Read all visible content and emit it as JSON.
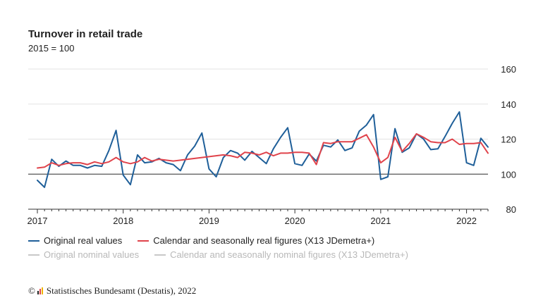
{
  "header": {
    "title": "Turnover in retail trade",
    "subtitle": "2015 = 100"
  },
  "legend": {
    "row1": [
      {
        "label": "Original real values",
        "color": "#1f5f99"
      },
      {
        "label": "Calendar and seasonally real figures (X13 JDemetra+)",
        "color": "#e0434b"
      }
    ],
    "row2": [
      {
        "label": "Original nominal values",
        "color": "#c8c8c8"
      },
      {
        "label": "Calendar and seasonally nominal figures (X13 JDemetra+)",
        "color": "#c8c8c8"
      }
    ]
  },
  "footer": {
    "copyright_symbol": "©",
    "text": "Statistisches Bundesamt (Destatis), 2022"
  },
  "chart_data": {
    "type": "line",
    "x_start": "2017-01",
    "x_end": "2022-04",
    "x_tick_labels": [
      "2017",
      "2018",
      "2019",
      "2020",
      "2021",
      "2022"
    ],
    "y_ticks": [
      80,
      100,
      120,
      140,
      160
    ],
    "ylim": [
      80,
      160
    ],
    "reference_line": 100,
    "grid": true,
    "y_axis_position": "right",
    "series": [
      {
        "name": "Original real values",
        "color": "#1f5f99",
        "values": [
          96.5,
          92.5,
          108.5,
          104.5,
          107.5,
          105,
          105,
          103.5,
          105,
          104.5,
          113.5,
          125,
          99.5,
          94,
          111,
          106.5,
          107,
          109,
          106.5,
          105.5,
          102,
          111,
          116,
          123.5,
          103,
          98.5,
          109.5,
          113.5,
          112,
          108,
          113,
          109.5,
          106,
          114.5,
          121,
          126.5,
          106,
          105,
          111.5,
          107.5,
          116.5,
          115.5,
          119.5,
          113.5,
          115,
          124.5,
          128,
          134,
          97,
          98.5,
          126,
          112.5,
          115,
          123,
          120,
          114,
          114.5,
          121.5,
          129,
          135.5,
          106.5,
          105,
          120.5,
          115.5
        ]
      },
      {
        "name": "Calendar and seasonally real figures (X13 JDemetra+)",
        "color": "#e0434b",
        "values": [
          103.5,
          104,
          106.5,
          105,
          106,
          106.5,
          106.5,
          105.5,
          107,
          106,
          107,
          109.5,
          107,
          106,
          107,
          109.5,
          107.5,
          108.5,
          108,
          107.5,
          108,
          108.5,
          109,
          109.5,
          110,
          110.5,
          111,
          110.5,
          109.5,
          112.5,
          112,
          111,
          112.5,
          110.5,
          112,
          112,
          112.5,
          112.5,
          112,
          105.5,
          118,
          117.5,
          118.5,
          118.5,
          118.5,
          120.5,
          122.5,
          115.5,
          106.5,
          109.5,
          121,
          113,
          117.5,
          123,
          121,
          118.5,
          118,
          118,
          120,
          117,
          117.5,
          117.5,
          118,
          112
        ]
      }
    ]
  }
}
